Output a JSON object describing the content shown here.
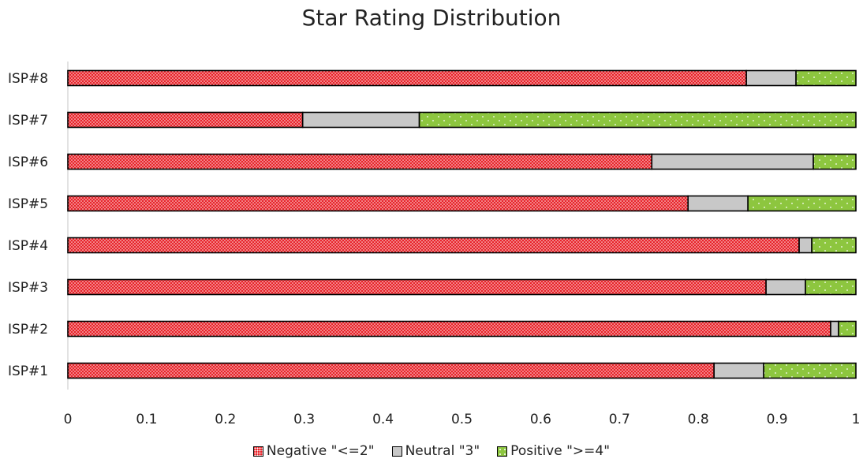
{
  "chart_data": {
    "type": "bar",
    "orientation": "horizontal",
    "stacked": true,
    "title": "Star Rating Distribution",
    "categories": [
      "ISP#1",
      "ISP#2",
      "ISP#3",
      "ISP#4",
      "ISP#5",
      "ISP#6",
      "ISP#7",
      "ISP#8"
    ],
    "series": [
      {
        "name": "Negative \"<=2\"",
        "color": "#e8242b",
        "pattern": "dense-dots",
        "values": [
          0.82,
          0.968,
          0.886,
          0.928,
          0.787,
          0.741,
          0.298,
          0.861
        ]
      },
      {
        "name": "Neutral \"3\"",
        "color": "#c8c8c8",
        "pattern": "solid",
        "values": [
          0.063,
          0.01,
          0.05,
          0.016,
          0.076,
          0.205,
          0.148,
          0.063
        ]
      },
      {
        "name": "Positive \">=4\"",
        "color": "#8dc63f",
        "pattern": "sparse-dots",
        "values": [
          0.117,
          0.022,
          0.064,
          0.056,
          0.137,
          0.054,
          0.554,
          0.076
        ]
      }
    ],
    "x_ticks": [
      "0",
      "0.1",
      "0.2",
      "0.3",
      "0.4",
      "0.5",
      "0.6",
      "0.7",
      "0.8",
      "0.9",
      "1"
    ],
    "xlim": [
      0,
      1
    ],
    "grid": false,
    "legend_position": "bottom"
  }
}
